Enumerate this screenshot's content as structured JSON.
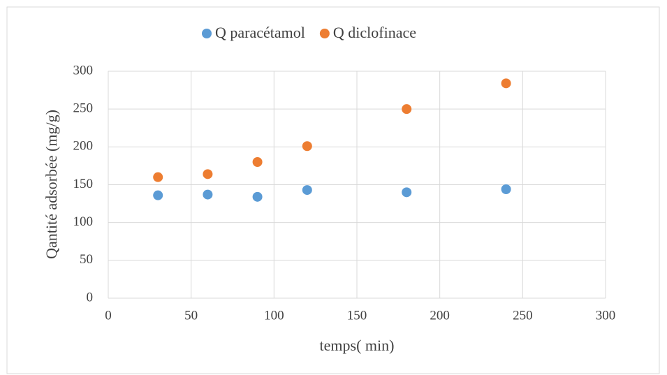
{
  "chart_data": {
    "type": "scatter",
    "x_label": "temps( min)",
    "y_label": "Qantité adsorbée (mg/g)",
    "series": [
      {
        "name": "Q paracétamol",
        "color": "#5b9bd5",
        "x": [
          30,
          60,
          90,
          120,
          180,
          240
        ],
        "values": [
          136,
          137,
          134,
          143,
          140,
          144
        ]
      },
      {
        "name": "Q diclofinace",
        "color": "#ed7d31",
        "x": [
          30,
          60,
          90,
          120,
          180,
          240
        ],
        "values": [
          160,
          164,
          180,
          201,
          250,
          284
        ]
      }
    ],
    "xlim": [
      0,
      300
    ],
    "xticks": [
      0,
      50,
      100,
      150,
      200,
      250,
      300
    ],
    "ylim": [
      0,
      300
    ],
    "yticks": [
      0,
      50,
      100,
      150,
      200,
      250,
      300
    ],
    "grid": true,
    "legend": "top"
  }
}
